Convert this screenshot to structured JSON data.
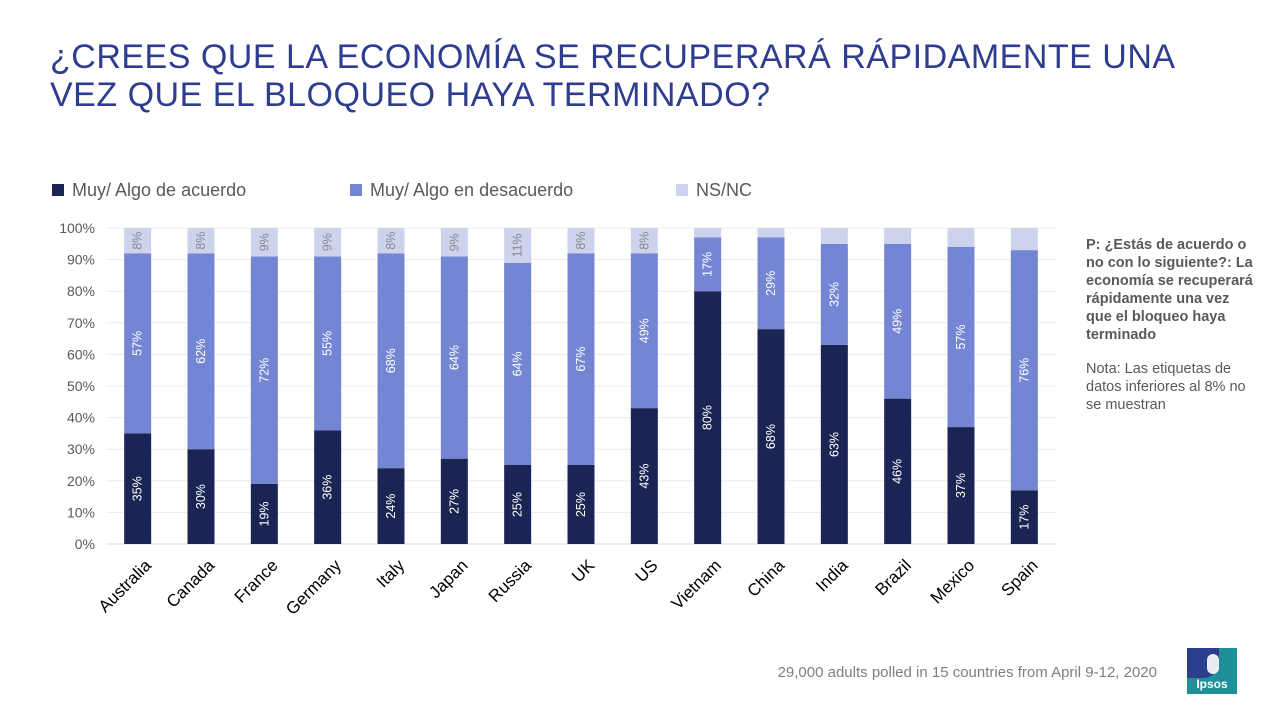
{
  "title": "¿CREES QUE LA ECONOMÍA SE RECUPERARÁ RÁPIDAMENTE UNA VEZ QUE EL BLOQUEO HAYA TERMINADO?",
  "side_note": {
    "question": "P: ¿Estás de acuerdo o no con lo siguiente?: La economía se recuperará rápidamente una vez que el bloqueo haya terminado",
    "note": "Nota: Las etiquetas de datos inferiores al 8% no se muestran"
  },
  "footer": "29,000 adults polled in 15 countries from April 9-12, 2020",
  "logo_text": "Ipsos",
  "colors": {
    "agree": "#1b2554",
    "disagree": "#7485d3",
    "nsnc": "#cdd3ed",
    "title": "#2e3d8f"
  },
  "chart_data": {
    "type": "bar",
    "stacked": true,
    "categories": [
      "Australia",
      "Canada",
      "France",
      "Germany",
      "Italy",
      "Japan",
      "Russia",
      "UK",
      "US",
      "Vietnam",
      "China",
      "India",
      "Brazil",
      "Mexico",
      "Spain"
    ],
    "series": [
      {
        "name": "Muy/ Algo de acuerdo",
        "values": [
          35,
          30,
          19,
          36,
          24,
          27,
          25,
          25,
          43,
          80,
          68,
          63,
          46,
          37,
          17
        ]
      },
      {
        "name": "Muy/ Algo en desacuerdo",
        "values": [
          57,
          62,
          72,
          55,
          68,
          64,
          64,
          67,
          49,
          17,
          29,
          32,
          49,
          57,
          76
        ]
      },
      {
        "name": "NS/NC",
        "values": [
          8,
          8,
          9,
          9,
          8,
          9,
          11,
          8,
          8,
          3,
          3,
          5,
          5,
          6,
          7
        ]
      }
    ],
    "labels": {
      "Muy/ Algo de acuerdo": [
        "35%",
        "30%",
        "19%",
        "36%",
        "24%",
        "27%",
        "25%",
        "25%",
        "43%",
        "80%",
        "68%",
        "63%",
        "46%",
        "37%",
        "17%"
      ],
      "Muy/ Algo en desacuerdo": [
        "57%",
        "62%",
        "72%",
        "55%",
        "68%",
        "64%",
        "64%",
        "67%",
        "49%",
        "17%",
        "29%",
        "32%",
        "49%",
        "57%",
        "76%"
      ],
      "NS/NC": [
        "8%",
        "8%",
        "9%",
        "9%",
        "8%",
        "9%",
        "11%",
        "8%",
        "8%",
        "",
        "",
        "",
        "",
        "",
        ""
      ]
    },
    "yticks": [
      "0%",
      "10%",
      "20%",
      "30%",
      "40%",
      "50%",
      "60%",
      "70%",
      "80%",
      "90%",
      "100%"
    ],
    "ylim": [
      0,
      100
    ],
    "legend_position": "top",
    "grid": true
  }
}
